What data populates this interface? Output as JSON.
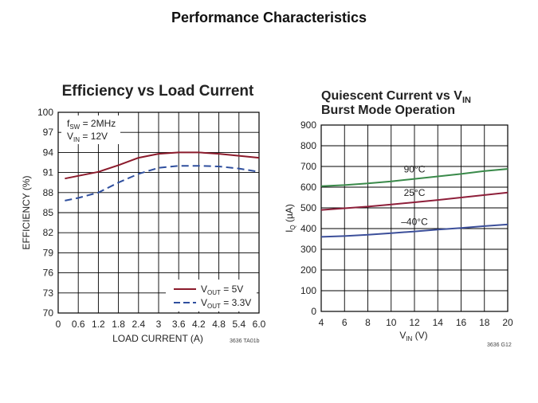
{
  "slide": {
    "title": "Performance Characteristics"
  },
  "colors": {
    "red": "#8b1a2b",
    "blue": "#2f4f9e",
    "green": "#3a8a4a",
    "crimson": "#8e1f3a",
    "navy": "#3c4f9a"
  },
  "chart_data": [
    {
      "type": "line",
      "title": "Efficiency vs Load Current",
      "xlabel": "LOAD CURRENT (A)",
      "ylabel": "EFFICIENCY (%)",
      "xlim": [
        0,
        6.0
      ],
      "ylim": [
        70,
        100
      ],
      "xticks": [
        "0",
        "0.6",
        "1.2",
        "1.8",
        "2.4",
        "3",
        "3.6",
        "4.2",
        "4.8",
        "5.4",
        "6.0"
      ],
      "yticks": [
        "70",
        "73",
        "76",
        "79",
        "82",
        "85",
        "88",
        "91",
        "94",
        "97",
        "100"
      ],
      "conditions": [
        "f_SW = 2MHz",
        "V_IN = 12V"
      ],
      "figure_id": "3636 TA01b",
      "series": [
        {
          "name": "V_OUT = 5V",
          "label_main": "V",
          "label_sub": "OUT",
          "label_rest": " = 5V",
          "style": "solid",
          "color": "#8b1a2b",
          "x": [
            0.2,
            0.6,
            1.2,
            1.8,
            2.4,
            3.0,
            3.6,
            4.2,
            4.8,
            5.4,
            6.0
          ],
          "y": [
            90.1,
            90.5,
            91.1,
            92.1,
            93.2,
            93.8,
            94.0,
            94.0,
            93.8,
            93.5,
            93.2
          ]
        },
        {
          "name": "V_OUT = 3.3V",
          "label_main": "V",
          "label_sub": "OUT",
          "label_rest": " = 3.3V",
          "style": "dashed",
          "color": "#2f4f9e",
          "x": [
            0.2,
            0.6,
            1.2,
            1.8,
            2.4,
            3.0,
            3.6,
            4.2,
            4.8,
            5.4,
            6.0
          ],
          "y": [
            86.8,
            87.2,
            88.0,
            89.5,
            90.8,
            91.7,
            92.0,
            92.0,
            91.9,
            91.6,
            91.1
          ]
        }
      ]
    },
    {
      "type": "line",
      "title_line1": "Quiescent Current vs V",
      "title_line1_sub": "IN",
      "title_line2": "Burst Mode Operation",
      "xlabel": "V",
      "xlabel_sub": "IN",
      "xlabel_rest": " (V)",
      "ylabel": "I",
      "ylabel_sub": "Q",
      "ylabel_rest": " (µA)",
      "xlim": [
        4,
        20
      ],
      "ylim": [
        0,
        900
      ],
      "xticks": [
        "4",
        "6",
        "8",
        "10",
        "12",
        "14",
        "16",
        "18",
        "20"
      ],
      "yticks": [
        "0",
        "100",
        "200",
        "300",
        "400",
        "500",
        "600",
        "700",
        "800",
        "900"
      ],
      "figure_id": "3636 G12",
      "series": [
        {
          "name": "90°C",
          "color": "#3a8a4a",
          "x": [
            4,
            6,
            8,
            10,
            12,
            14,
            16,
            18,
            20
          ],
          "y": [
            605,
            610,
            618,
            628,
            640,
            652,
            664,
            678,
            688
          ]
        },
        {
          "name": "25°C",
          "color": "#8e1f3a",
          "x": [
            4,
            6,
            8,
            10,
            12,
            14,
            16,
            18,
            20
          ],
          "y": [
            490,
            498,
            506,
            516,
            527,
            538,
            550,
            562,
            574
          ]
        },
        {
          "name": "–40°C",
          "color": "#3c4f9a",
          "x": [
            4,
            6,
            8,
            10,
            12,
            14,
            16,
            18,
            20
          ],
          "y": [
            360,
            364,
            370,
            378,
            386,
            395,
            403,
            412,
            420
          ]
        }
      ]
    }
  ]
}
